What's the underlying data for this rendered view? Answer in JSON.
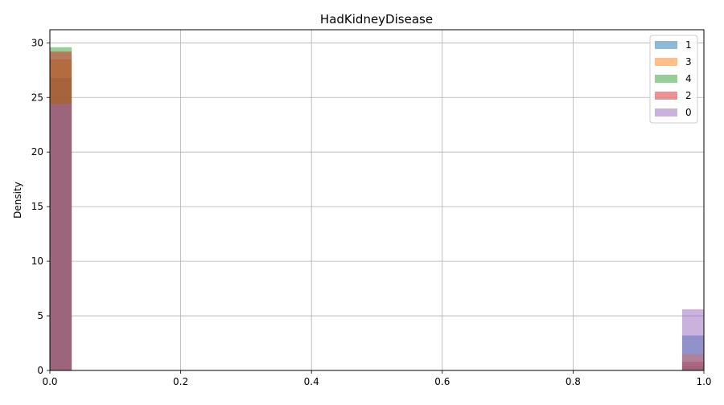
{
  "chart_data": {
    "type": "histogram",
    "title": "HadKidneyDisease",
    "xlabel": "",
    "ylabel": "Density",
    "xlim": [
      0,
      1
    ],
    "ylim": [
      0,
      31.2
    ],
    "xticks": [
      "0.0",
      "0.2",
      "0.4",
      "0.6",
      "0.8",
      "1.0"
    ],
    "yticks": [
      "0",
      "5",
      "10",
      "15",
      "20",
      "25",
      "30"
    ],
    "grid": true,
    "legend_position": "top-right",
    "bin_width": 0.0333,
    "series": [
      {
        "name": "1",
        "color": "#1f77b4",
        "bins": [
          {
            "x": 0.0,
            "density": 26.8
          },
          {
            "x": 0.9667,
            "density": 3.2
          }
        ]
      },
      {
        "name": "3",
        "color": "#ff7f0e",
        "bins": [
          {
            "x": 0.0,
            "density": 28.5
          },
          {
            "x": 0.9667,
            "density": 1.5
          }
        ]
      },
      {
        "name": "4",
        "color": "#2ca02c",
        "bins": [
          {
            "x": 0.0,
            "density": 29.6
          },
          {
            "x": 0.9667,
            "density": 0.4
          }
        ]
      },
      {
        "name": "2",
        "color": "#d62728",
        "bins": [
          {
            "x": 0.0,
            "density": 29.2
          },
          {
            "x": 0.9667,
            "density": 0.8
          }
        ]
      },
      {
        "name": "0",
        "color": "#9467bd",
        "bins": [
          {
            "x": 0.0,
            "density": 24.4
          },
          {
            "x": 0.9667,
            "density": 5.6
          }
        ]
      }
    ]
  }
}
